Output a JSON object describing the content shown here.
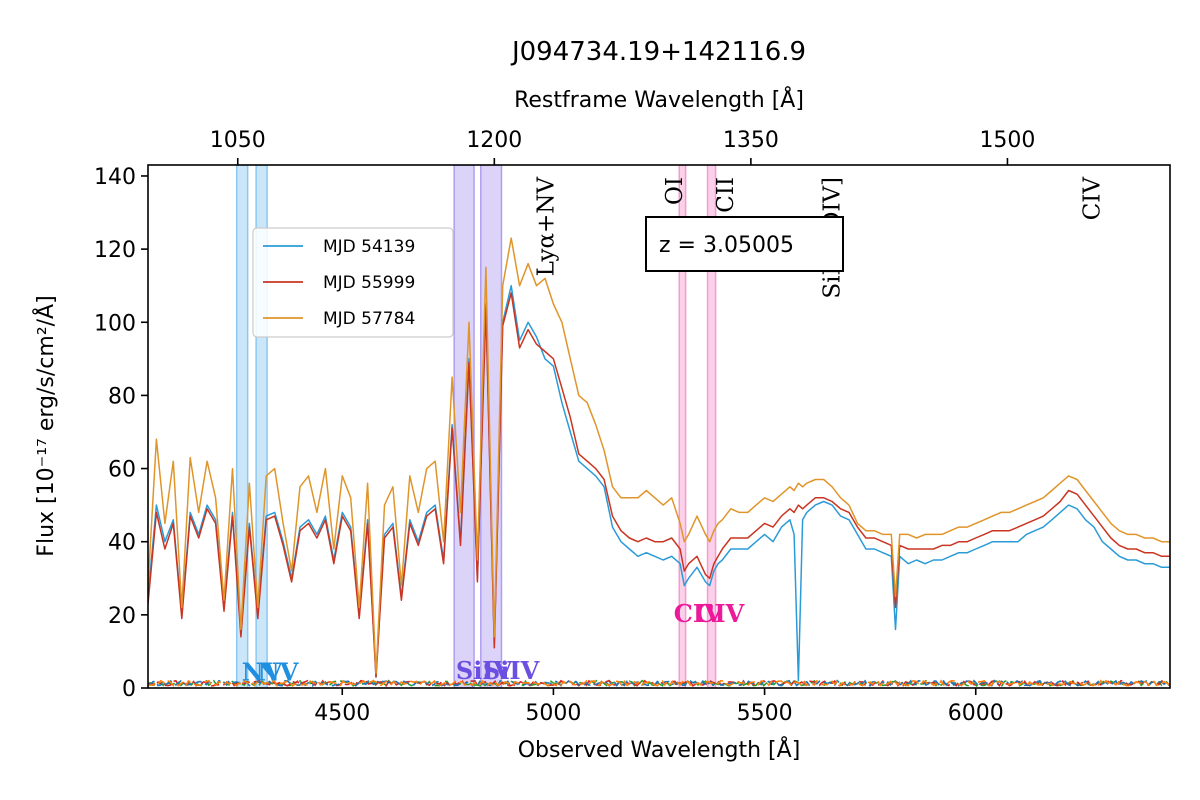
{
  "chart_data": {
    "type": "line",
    "title": "J094734.19+142116.9",
    "xlabel": "Observed Wavelength [Å]",
    "ylabel": "Flux [10⁻¹⁷ erg/s/cm²/Å]",
    "top_xlabel": "Restframe Wavelength [Å]",
    "xlim": [
      4040,
      6460
    ],
    "ylim": [
      0,
      143
    ],
    "x_ticks": [
      4500,
      5000,
      5500,
      6000
    ],
    "y_ticks": [
      0,
      20,
      40,
      60,
      80,
      100,
      120,
      140
    ],
    "top_ticks": [
      1050,
      1200,
      1350,
      1500
    ],
    "redshift": 3.05005,
    "redshift_label": "z = 3.05005",
    "legend_position": "upper-left",
    "series": [
      {
        "name": "MJD 54139",
        "color": "#2b9bd8",
        "x": [
          4040,
          4060,
          4080,
          4100,
          4120,
          4140,
          4160,
          4180,
          4200,
          4220,
          4240,
          4260,
          4280,
          4300,
          4320,
          4340,
          4360,
          4380,
          4400,
          4420,
          4440,
          4460,
          4480,
          4500,
          4520,
          4540,
          4560,
          4580,
          4600,
          4620,
          4640,
          4660,
          4680,
          4700,
          4720,
          4740,
          4760,
          4780,
          4800,
          4820,
          4840,
          4860,
          4880,
          4900,
          4920,
          4940,
          4960,
          4980,
          5000,
          5020,
          5040,
          5060,
          5080,
          5100,
          5120,
          5140,
          5160,
          5180,
          5200,
          5220,
          5240,
          5260,
          5280,
          5300,
          5310,
          5320,
          5340,
          5360,
          5370,
          5380,
          5390,
          5400,
          5420,
          5440,
          5460,
          5480,
          5500,
          5520,
          5540,
          5560,
          5570,
          5580,
          5590,
          5600,
          5620,
          5640,
          5660,
          5680,
          5700,
          5720,
          5740,
          5760,
          5780,
          5800,
          5810,
          5820,
          5840,
          5860,
          5880,
          5900,
          5920,
          5940,
          5960,
          5980,
          6000,
          6020,
          6040,
          6060,
          6080,
          6100,
          6120,
          6140,
          6160,
          6180,
          6200,
          6220,
          6240,
          6260,
          6280,
          6300,
          6320,
          6340,
          6360,
          6380,
          6400,
          6420,
          6440,
          6460
        ],
        "y": [
          25,
          50,
          40,
          46,
          20,
          48,
          42,
          50,
          46,
          22,
          48,
          15,
          45,
          20,
          47,
          48,
          40,
          30,
          44,
          46,
          42,
          47,
          35,
          48,
          44,
          20,
          46,
          3,
          42,
          45,
          25,
          46,
          40,
          48,
          50,
          35,
          72,
          40,
          90,
          30,
          105,
          12,
          100,
          110,
          95,
          100,
          96,
          90,
          88,
          78,
          70,
          62,
          60,
          58,
          55,
          44,
          40,
          38,
          36,
          37,
          36,
          35,
          36,
          34,
          28,
          30,
          33,
          29,
          28,
          32,
          34,
          35,
          38,
          38,
          38,
          40,
          42,
          40,
          44,
          46,
          42,
          2,
          46,
          48,
          50,
          51,
          50,
          47,
          46,
          42,
          38,
          38,
          37,
          36,
          16,
          36,
          34,
          35,
          34,
          35,
          35,
          36,
          37,
          37,
          38,
          39,
          40,
          40,
          40,
          40,
          42,
          43,
          44,
          46,
          48,
          50,
          49,
          46,
          44,
          40,
          38,
          36,
          35,
          35,
          34,
          34,
          33,
          33
        ]
      },
      {
        "name": "MJD 55999",
        "color": "#c93522",
        "x": [
          4040,
          4060,
          4080,
          4100,
          4120,
          4140,
          4160,
          4180,
          4200,
          4220,
          4240,
          4260,
          4280,
          4300,
          4320,
          4340,
          4360,
          4380,
          4400,
          4420,
          4440,
          4460,
          4480,
          4500,
          4520,
          4540,
          4560,
          4580,
          4600,
          4620,
          4640,
          4660,
          4680,
          4700,
          4720,
          4740,
          4760,
          4780,
          4800,
          4820,
          4840,
          4860,
          4880,
          4900,
          4920,
          4940,
          4960,
          4980,
          5000,
          5020,
          5040,
          5060,
          5080,
          5100,
          5120,
          5140,
          5160,
          5180,
          5200,
          5220,
          5240,
          5260,
          5280,
          5300,
          5310,
          5320,
          5340,
          5360,
          5370,
          5380,
          5390,
          5400,
          5420,
          5440,
          5460,
          5480,
          5500,
          5520,
          5540,
          5560,
          5570,
          5580,
          5590,
          5600,
          5620,
          5640,
          5660,
          5680,
          5700,
          5720,
          5740,
          5760,
          5780,
          5800,
          5810,
          5820,
          5840,
          5860,
          5880,
          5900,
          5920,
          5940,
          5960,
          5980,
          6000,
          6020,
          6040,
          6060,
          6080,
          6100,
          6120,
          6140,
          6160,
          6180,
          6200,
          6220,
          6240,
          6260,
          6280,
          6300,
          6320,
          6340,
          6360,
          6380,
          6400,
          6420,
          6440,
          6460
        ],
        "y": [
          23,
          48,
          38,
          45,
          19,
          47,
          41,
          49,
          45,
          21,
          47,
          14,
          44,
          19,
          46,
          47,
          39,
          29,
          43,
          45,
          41,
          46,
          34,
          47,
          43,
          19,
          45,
          3,
          41,
          44,
          24,
          45,
          39,
          47,
          49,
          34,
          71,
          39,
          89,
          29,
          104,
          11,
          99,
          108,
          93,
          98,
          94,
          92,
          90,
          82,
          74,
          64,
          62,
          60,
          57,
          47,
          43,
          41,
          40,
          41,
          40,
          40,
          41,
          38,
          32,
          34,
          36,
          31,
          30,
          34,
          36,
          38,
          41,
          41,
          41,
          43,
          45,
          44,
          47,
          49,
          48,
          50,
          49,
          50,
          52,
          52,
          51,
          49,
          48,
          44,
          41,
          41,
          40,
          39,
          22,
          39,
          38,
          38,
          38,
          38,
          39,
          39,
          40,
          40,
          41,
          42,
          43,
          43,
          43,
          44,
          45,
          46,
          47,
          49,
          51,
          54,
          53,
          50,
          47,
          44,
          41,
          39,
          38,
          38,
          37,
          37,
          36,
          36
        ]
      },
      {
        "name": "MJD 57784",
        "color": "#e0952b",
        "x": [
          4040,
          4060,
          4080,
          4100,
          4120,
          4140,
          4160,
          4180,
          4200,
          4220,
          4240,
          4260,
          4280,
          4300,
          4320,
          4340,
          4360,
          4380,
          4400,
          4420,
          4440,
          4460,
          4480,
          4500,
          4520,
          4540,
          4560,
          4580,
          4600,
          4620,
          4640,
          4660,
          4680,
          4700,
          4720,
          4740,
          4760,
          4780,
          4800,
          4820,
          4840,
          4860,
          4880,
          4900,
          4920,
          4940,
          4960,
          4980,
          5000,
          5020,
          5040,
          5060,
          5080,
          5100,
          5120,
          5140,
          5160,
          5180,
          5200,
          5220,
          5240,
          5260,
          5280,
          5300,
          5310,
          5320,
          5340,
          5360,
          5370,
          5380,
          5390,
          5400,
          5420,
          5440,
          5460,
          5480,
          5500,
          5520,
          5540,
          5560,
          5570,
          5580,
          5590,
          5600,
          5620,
          5640,
          5660,
          5680,
          5700,
          5720,
          5740,
          5760,
          5780,
          5800,
          5810,
          5820,
          5840,
          5860,
          5880,
          5900,
          5920,
          5940,
          5960,
          5980,
          6000,
          6020,
          6040,
          6060,
          6080,
          6100,
          6120,
          6140,
          6160,
          6180,
          6200,
          6220,
          6240,
          6260,
          6280,
          6300,
          6320,
          6340,
          6360,
          6380,
          6400,
          6420,
          6440,
          6460
        ],
        "y": [
          28,
          68,
          45,
          62,
          22,
          63,
          48,
          62,
          52,
          24,
          60,
          16,
          56,
          22,
          58,
          60,
          45,
          32,
          55,
          58,
          48,
          60,
          38,
          58,
          52,
          22,
          56,
          4,
          50,
          55,
          28,
          58,
          48,
          60,
          62,
          40,
          85,
          48,
          100,
          35,
          115,
          14,
          110,
          123,
          110,
          116,
          110,
          112,
          105,
          100,
          90,
          80,
          78,
          72,
          65,
          55,
          52,
          52,
          52,
          54,
          52,
          50,
          52,
          45,
          40,
          42,
          47,
          42,
          40,
          43,
          45,
          46,
          49,
          48,
          48,
          50,
          52,
          51,
          53,
          55,
          54,
          56,
          55,
          56,
          57,
          57,
          55,
          52,
          50,
          45,
          43,
          43,
          42,
          42,
          25,
          42,
          42,
          41,
          42,
          42,
          42,
          43,
          44,
          44,
          45,
          46,
          47,
          48,
          48,
          49,
          50,
          51,
          52,
          54,
          56,
          58,
          57,
          54,
          51,
          48,
          45,
          43,
          42,
          42,
          41,
          41,
          40,
          40
        ]
      }
    ],
    "line_labels": [
      {
        "text": "Lyα+NV",
        "rest": 1230,
        "y": 115,
        "color": "#000000"
      },
      {
        "text": "OI",
        "rest": 1305,
        "y": 133,
        "color": "#000000"
      },
      {
        "text": "CII",
        "rest": 1335,
        "y": 133,
        "color": "#000000"
      },
      {
        "text": "SiIV+OIV]",
        "rest": 1397,
        "y": 105,
        "color": "#000000"
      },
      {
        "text": "CIV",
        "rest": 1549,
        "y": 127,
        "color": "#000000"
      }
    ],
    "absorption_bands": [
      {
        "x0": 4250,
        "x1": 4276,
        "color": "#8cc8f2"
      },
      {
        "x0": 4296,
        "x1": 4322,
        "color": "#8cc8f2"
      },
      {
        "x0": 4765,
        "x1": 4812,
        "color": "#b09ef0"
      },
      {
        "x0": 4828,
        "x1": 4877,
        "color": "#b09ef0"
      },
      {
        "x0": 5298,
        "x1": 5313,
        "color": "#f79ad0"
      },
      {
        "x0": 5365,
        "x1": 5384,
        "color": "#f79ad0"
      }
    ],
    "absorption_labels": [
      {
        "text": "NV",
        "x": 4262,
        "y": 2,
        "color": "#1f8fe0"
      },
      {
        "text": "NV",
        "x": 4300,
        "y": 2,
        "color": "#1f8fe0"
      },
      {
        "text": "SiIV",
        "x": 4769,
        "y": 2.5,
        "color": "#6a4fe0"
      },
      {
        "text": "SiIV",
        "x": 4833,
        "y": 2.5,
        "color": "#6a4fe0"
      },
      {
        "text": "CIV",
        "x": 5285,
        "y": 18,
        "color": "#ec1a9a"
      },
      {
        "text": "CIV",
        "x": 5336,
        "y": 18,
        "color": "#ec1a9a"
      }
    ],
    "error_colors": [
      "#2ca02c",
      "#d62728",
      "#1f77b4",
      "#ff7f0e"
    ]
  }
}
